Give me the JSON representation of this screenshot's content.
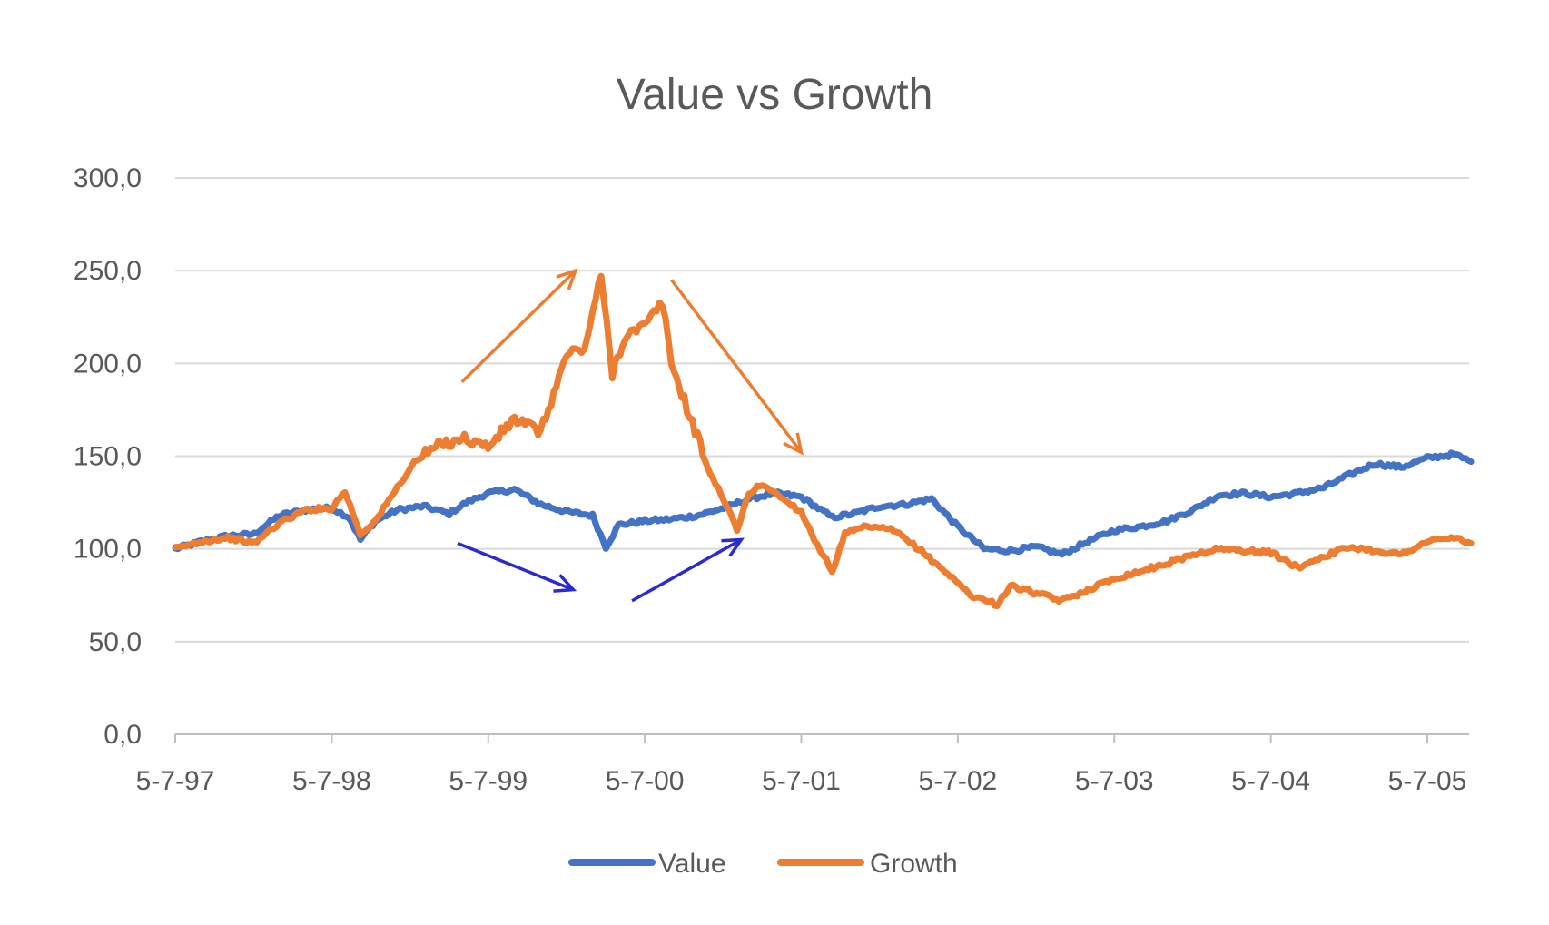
{
  "chart_data": {
    "type": "line",
    "title": "Value vs Growth",
    "xlabel": "",
    "ylabel": "",
    "ylim": [
      0,
      300
    ],
    "y_ticks": [
      "0,0",
      "50,0",
      "100,0",
      "150,0",
      "200,0",
      "250,0",
      "300,0"
    ],
    "x_ticks": [
      "5-7-97",
      "5-7-98",
      "5-7-99",
      "5-7-00",
      "5-7-01",
      "5-7-02",
      "5-7-03",
      "5-7-04",
      "5-7-05"
    ],
    "x_range": [
      "1997-07-05",
      "2005-10-15"
    ],
    "grid": true,
    "legend": "bottom",
    "series": [
      {
        "name": "Value",
        "color": "#4472C4",
        "points": [
          [
            "1997-07-05",
            100
          ],
          [
            "1997-09-05",
            104
          ],
          [
            "1997-11-05",
            107
          ],
          [
            "1998-01-05",
            108
          ],
          [
            "1998-03-05",
            118
          ],
          [
            "1998-05-05",
            121
          ],
          [
            "1998-07-05",
            122
          ],
          [
            "1998-08-15",
            117
          ],
          [
            "1998-09-10",
            105
          ],
          [
            "1998-10-15",
            115
          ],
          [
            "1998-12-05",
            121
          ],
          [
            "1999-02-05",
            123
          ],
          [
            "1999-04-05",
            119
          ],
          [
            "1999-05-15",
            125
          ],
          [
            "1999-07-05",
            130
          ],
          [
            "1999-09-05",
            132
          ],
          [
            "1999-11-05",
            124
          ],
          [
            "2000-01-05",
            120
          ],
          [
            "2000-03-05",
            118
          ],
          [
            "2000-04-05",
            101
          ],
          [
            "2000-05-05",
            113
          ],
          [
            "2000-07-05",
            115
          ],
          [
            "2000-09-05",
            116
          ],
          [
            "2000-11-05",
            118
          ],
          [
            "2001-01-05",
            122
          ],
          [
            "2001-03-05",
            127
          ],
          [
            "2001-05-05",
            130
          ],
          [
            "2001-07-05",
            128
          ],
          [
            "2001-09-15",
            117
          ],
          [
            "2001-11-05",
            119
          ],
          [
            "2002-01-05",
            123
          ],
          [
            "2002-03-05",
            124
          ],
          [
            "2002-05-05",
            127
          ],
          [
            "2002-07-05",
            112
          ],
          [
            "2002-09-05",
            100
          ],
          [
            "2002-11-05",
            99
          ],
          [
            "2003-01-05",
            101
          ],
          [
            "2003-03-05",
            97
          ],
          [
            "2003-05-05",
            104
          ],
          [
            "2003-07-05",
            110
          ],
          [
            "2003-09-05",
            112
          ],
          [
            "2003-11-05",
            115
          ],
          [
            "2004-01-05",
            121
          ],
          [
            "2004-03-05",
            129
          ],
          [
            "2004-05-05",
            130
          ],
          [
            "2004-07-05",
            128
          ],
          [
            "2004-09-05",
            130
          ],
          [
            "2004-11-05",
            133
          ],
          [
            "2005-01-05",
            140
          ],
          [
            "2005-03-05",
            146
          ],
          [
            "2005-05-05",
            144
          ],
          [
            "2005-07-05",
            149
          ],
          [
            "2005-09-05",
            151
          ],
          [
            "2005-10-15",
            147
          ]
        ]
      },
      {
        "name": "Growth",
        "color": "#ED7D31",
        "points": [
          [
            "1997-07-05",
            100
          ],
          [
            "1997-09-05",
            104
          ],
          [
            "1997-11-05",
            106
          ],
          [
            "1998-01-05",
            103
          ],
          [
            "1998-03-05",
            114
          ],
          [
            "1998-05-05",
            121
          ],
          [
            "1998-07-05",
            122
          ],
          [
            "1998-08-05",
            131
          ],
          [
            "1998-09-10",
            108
          ],
          [
            "1998-10-15",
            115
          ],
          [
            "1998-12-05",
            133
          ],
          [
            "1999-01-15",
            147
          ],
          [
            "1999-03-05",
            155
          ],
          [
            "1999-05-05",
            160
          ],
          [
            "1999-07-05",
            155
          ],
          [
            "1999-09-05",
            170
          ],
          [
            "1999-11-05",
            163
          ],
          [
            "2000-01-05",
            205
          ],
          [
            "2000-02-15",
            208
          ],
          [
            "2000-03-25",
            247
          ],
          [
            "2000-04-20",
            195
          ],
          [
            "2000-05-20",
            215
          ],
          [
            "2000-07-05",
            220
          ],
          [
            "2000-08-15",
            233
          ],
          [
            "2000-09-05",
            200
          ],
          [
            "2000-10-05",
            180
          ],
          [
            "2000-11-05",
            160
          ],
          [
            "2000-12-05",
            140
          ],
          [
            "2001-01-05",
            127
          ],
          [
            "2001-02-05",
            110
          ],
          [
            "2001-03-05",
            130
          ],
          [
            "2001-04-05",
            135
          ],
          [
            "2001-06-05",
            125
          ],
          [
            "2001-07-05",
            120
          ],
          [
            "2001-08-05",
            105
          ],
          [
            "2001-09-15",
            88
          ],
          [
            "2001-10-15",
            108
          ],
          [
            "2001-12-05",
            112
          ],
          [
            "2002-02-05",
            110
          ],
          [
            "2002-04-05",
            100
          ],
          [
            "2002-06-05",
            88
          ],
          [
            "2002-08-05",
            75
          ],
          [
            "2002-10-05",
            70
          ],
          [
            "2002-11-05",
            80
          ],
          [
            "2003-01-05",
            76
          ],
          [
            "2003-03-05",
            72
          ],
          [
            "2003-05-05",
            78
          ],
          [
            "2003-07-05",
            84
          ],
          [
            "2003-09-05",
            88
          ],
          [
            "2003-11-05",
            92
          ],
          [
            "2004-01-05",
            97
          ],
          [
            "2004-03-05",
            100
          ],
          [
            "2004-05-05",
            99
          ],
          [
            "2004-07-05",
            98
          ],
          [
            "2004-09-05",
            90
          ],
          [
            "2004-11-05",
            96
          ],
          [
            "2005-01-05",
            101
          ],
          [
            "2005-03-05",
            99
          ],
          [
            "2005-05-05",
            97
          ],
          [
            "2005-07-05",
            104
          ],
          [
            "2005-09-05",
            106
          ],
          [
            "2005-10-15",
            103
          ]
        ]
      }
    ],
    "annotations": [
      {
        "type": "arrow",
        "color": "#ED7D31",
        "from": [
          "1999-05-05",
          190
        ],
        "to": [
          "2000-01-25",
          250
        ]
      },
      {
        "type": "arrow",
        "color": "#ED7D31",
        "from": [
          "2000-09-05",
          245
        ],
        "to": [
          "2001-07-05",
          152
        ]
      },
      {
        "type": "arrow",
        "color": "#2B2BCF",
        "from": [
          "1999-04-25",
          103
        ],
        "to": [
          "2000-01-20",
          78
        ]
      },
      {
        "type": "arrow",
        "color": "#2B2BCF",
        "from": [
          "2000-06-05",
          72
        ],
        "to": [
          "2001-02-15",
          105
        ]
      }
    ]
  }
}
